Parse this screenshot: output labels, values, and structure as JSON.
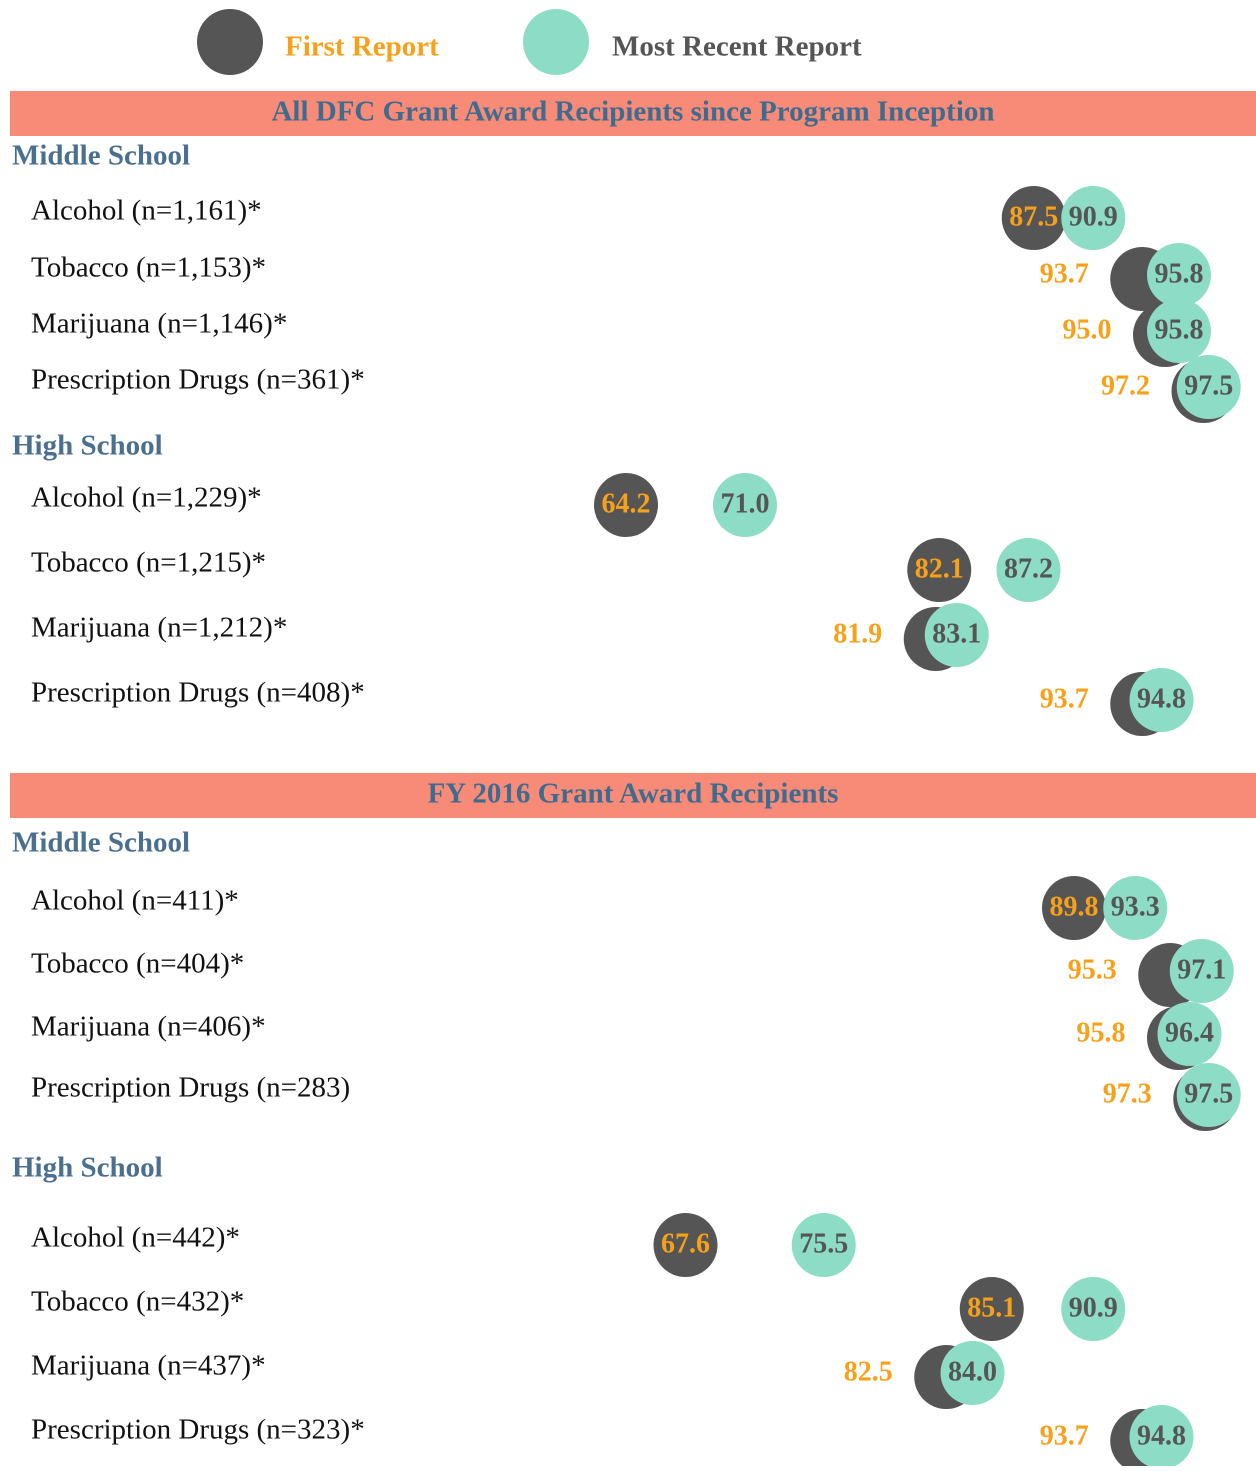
{
  "chart_data": {
    "type": "dot",
    "series": [
      {
        "name": "First Report",
        "color": "#555555",
        "label_color": "#f7a11a"
      },
      {
        "name": "Most Recent Report",
        "color": "#8cdcc6",
        "label_color": "#555555"
      }
    ],
    "panels": [
      {
        "title": "All DFC Grant Award Recipients since Program Inception",
        "groups": [
          {
            "title": "Middle School",
            "categories": [
              "Alcohol (n=1,161)*",
              "Tobacco (n=1,153)*",
              "Marijuana (n=1,146)*",
              "Prescription Drugs (n=361)*"
            ],
            "series": [
              {
                "values": [
                  87.5,
                  93.7,
                  95,
                  97.2
                ],
                "value_labels": [
                  "87.5",
                  "93.7",
                  "95.0",
                  "97.2"
                ]
              },
              {
                "values": [
                  90.9,
                  95.8,
                  95.8,
                  97.5
                ],
                "value_labels": [
                  "90.9",
                  "95.8",
                  "95.8",
                  "97.5"
                ]
              }
            ]
          },
          {
            "title": "High School",
            "categories": [
              "Alcohol (n=1,229)*",
              "Tobacco (n=1,215)*",
              "Marijuana (n=1,212)*",
              "Prescription Drugs (n=408)*"
            ],
            "series": [
              {
                "values": [
                  64.2,
                  82.1,
                  81.9,
                  93.7
                ],
                "value_labels": [
                  "64.2",
                  "82.1",
                  "81.9",
                  "93.7"
                ]
              },
              {
                "values": [
                  71,
                  87.2,
                  83.1,
                  94.8
                ],
                "value_labels": [
                  "71.0",
                  "87.2",
                  "83.1",
                  "94.8"
                ]
              }
            ]
          }
        ]
      },
      {
        "title": "FY 2016 Grant Award Recipients",
        "groups": [
          {
            "title": "Middle School",
            "categories": [
              "Alcohol (n=411)*",
              "Tobacco (n=404)*",
              "Marijuana (n=406)*",
              "Prescription Drugs (n=283)"
            ],
            "series": [
              {
                "values": [
                  89.8,
                  95.3,
                  95.8,
                  97.3
                ],
                "value_labels": [
                  "89.8",
                  "95.3",
                  "95.8",
                  "97.3"
                ]
              },
              {
                "values": [
                  93.3,
                  97.1,
                  96.4,
                  97.5
                ],
                "value_labels": [
                  "93.3",
                  "97.1",
                  "96.4",
                  "97.5"
                ]
              }
            ]
          },
          {
            "title": "High School",
            "categories": [
              "Alcohol (n=442)*",
              "Tobacco (n=432)*",
              "Marijuana (n=437)*",
              "Prescription Drugs (n=323)*"
            ],
            "series": [
              {
                "values": [
                  67.6,
                  85.1,
                  82.5,
                  93.7
                ],
                "value_labels": [
                  "67.6",
                  "85.1",
                  "82.5",
                  "93.7"
                ]
              },
              {
                "values": [
                  75.5,
                  90.9,
                  84,
                  94.8
                ],
                "value_labels": [
                  "75.5",
                  "90.9",
                  "84.0",
                  "94.8"
                ]
              }
            ]
          }
        ]
      }
    ]
  }
}
